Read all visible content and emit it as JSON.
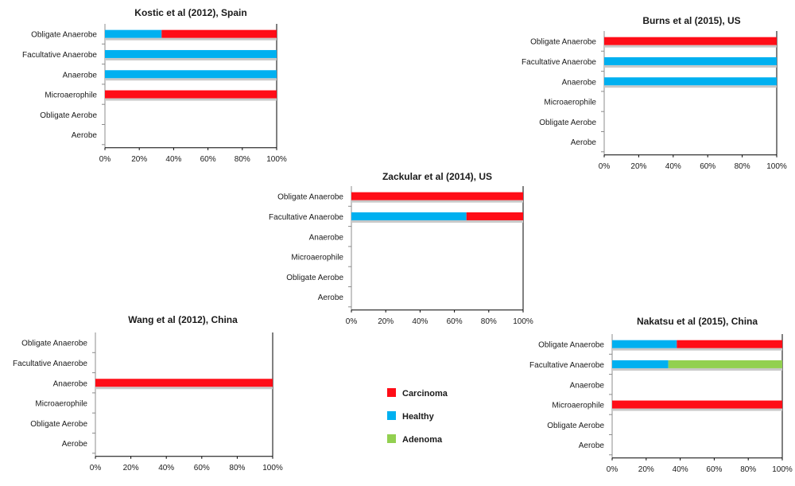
{
  "figure": {
    "colors": {
      "Carcinoma": "#ff0d17",
      "Healthy": "#00b0f0",
      "Adenoma": "#92d050"
    },
    "legend": {
      "items": [
        "Carcinoma",
        "Healthy",
        "Adenoma"
      ]
    }
  },
  "chart_data": [
    {
      "type": "bar",
      "orientation": "horizontal",
      "stacked": "percent",
      "title": "Kostic et al (2012),  Spain",
      "categories": [
        "Obligate Anaerobe",
        "Facultative Anaerobe",
        "Anaerobe",
        "Microaerophile",
        "Obligate Aerobe",
        "Aerobe"
      ],
      "series": [
        {
          "name": "Healthy",
          "values": [
            33,
            100,
            100,
            0,
            0,
            0
          ]
        },
        {
          "name": "Carcinoma",
          "values": [
            67,
            0,
            0,
            100,
            0,
            0
          ]
        },
        {
          "name": "Adenoma",
          "values": [
            0,
            0,
            0,
            0,
            0,
            0
          ]
        }
      ],
      "xticks": [
        "0%",
        "20%",
        "40%",
        "60%",
        "80%",
        "100%"
      ],
      "xlim": [
        0,
        100
      ]
    },
    {
      "type": "bar",
      "orientation": "horizontal",
      "stacked": "percent",
      "title": "Burns et al (2015),  US",
      "categories": [
        "Obligate Anaerobe",
        "Facultative Anaerobe",
        "Anaerobe",
        "Microaerophile",
        "Obligate Aerobe",
        "Aerobe"
      ],
      "series": [
        {
          "name": "Healthy",
          "values": [
            0,
            100,
            100,
            0,
            0,
            0
          ]
        },
        {
          "name": "Carcinoma",
          "values": [
            100,
            0,
            0,
            0,
            0,
            0
          ]
        },
        {
          "name": "Adenoma",
          "values": [
            0,
            0,
            0,
            0,
            0,
            0
          ]
        }
      ],
      "xticks": [
        "0%",
        "20%",
        "40%",
        "60%",
        "80%",
        "100%"
      ],
      "xlim": [
        0,
        100
      ]
    },
    {
      "type": "bar",
      "orientation": "horizontal",
      "stacked": "percent",
      "title": "Zackular et al (2014),  US",
      "categories": [
        "Obligate Anaerobe",
        "Facultative Anaerobe",
        "Anaerobe",
        "Microaerophile",
        "Obligate Aerobe",
        "Aerobe"
      ],
      "series": [
        {
          "name": "Healthy",
          "values": [
            0,
            67,
            0,
            0,
            0,
            0
          ]
        },
        {
          "name": "Carcinoma",
          "values": [
            100,
            33,
            0,
            0,
            0,
            0
          ]
        },
        {
          "name": "Adenoma",
          "values": [
            0,
            0,
            0,
            0,
            0,
            0
          ]
        }
      ],
      "xticks": [
        "0%",
        "20%",
        "40%",
        "60%",
        "80%",
        "100%"
      ],
      "xlim": [
        0,
        100
      ]
    },
    {
      "type": "bar",
      "orientation": "horizontal",
      "stacked": "percent",
      "title": "Wang et al (2012),  China",
      "categories": [
        "Obligate Anaerobe",
        "Facultative Anaerobe",
        "Anaerobe",
        "Microaerophile",
        "Obligate Aerobe",
        "Aerobe"
      ],
      "series": [
        {
          "name": "Healthy",
          "values": [
            0,
            0,
            0,
            0,
            0,
            0
          ]
        },
        {
          "name": "Carcinoma",
          "values": [
            0,
            0,
            100,
            0,
            0,
            0
          ]
        },
        {
          "name": "Adenoma",
          "values": [
            0,
            0,
            0,
            0,
            0,
            0
          ]
        }
      ],
      "xticks": [
        "0%",
        "20%",
        "40%",
        "60%",
        "80%",
        "100%"
      ],
      "xlim": [
        0,
        100
      ]
    },
    {
      "type": "bar",
      "orientation": "horizontal",
      "stacked": "percent",
      "title": "Nakatsu et al (2015),  China",
      "categories": [
        "Obligate Anaerobe",
        "Facultative Anaerobe",
        "Anaerobe",
        "Microaerophile",
        "Obligate Aerobe",
        "Aerobe"
      ],
      "series": [
        {
          "name": "Healthy",
          "values": [
            38,
            33,
            0,
            0,
            0,
            0
          ]
        },
        {
          "name": "Carcinoma",
          "values": [
            62,
            0,
            0,
            100,
            0,
            0
          ]
        },
        {
          "name": "Adenoma",
          "values": [
            0,
            67,
            0,
            0,
            0,
            0
          ]
        }
      ],
      "xticks": [
        "0%",
        "20%",
        "40%",
        "60%",
        "80%",
        "100%"
      ],
      "xlim": [
        0,
        100
      ]
    }
  ]
}
